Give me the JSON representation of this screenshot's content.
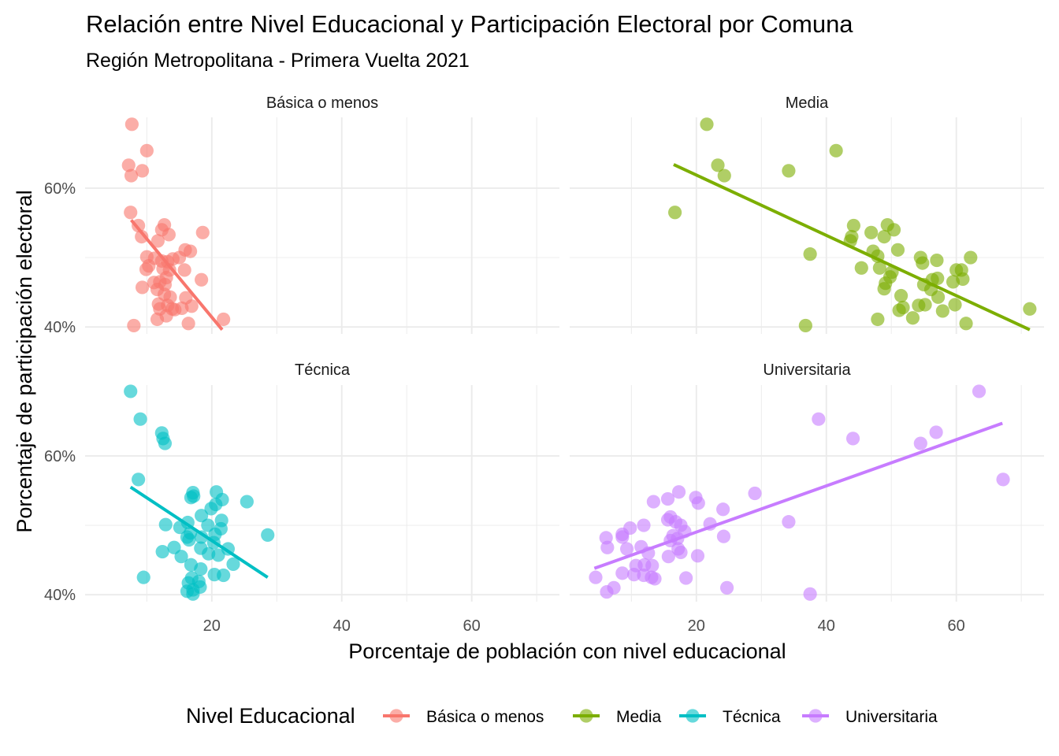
{
  "chart_data": {
    "type": "scatter",
    "title": "Relación entre Nivel Educacional y Participación Electoral por Comuna",
    "subtitle": "Región Metropolitana - Primera Vuelta 2021",
    "xlabel": "Porcentaje de población con nivel educacional",
    "ylabel": "Porcentaje de participación electoral",
    "xlim": [
      0.5,
      73.5
    ],
    "ylim": [
      39.0,
      70.2
    ],
    "x_ticks": [
      20,
      40,
      60
    ],
    "x_tick_labels": [
      "20",
      "40",
      "60"
    ],
    "y_ticks": [
      40,
      60
    ],
    "y_tick_labels": [
      "40%",
      "60%"
    ],
    "grid": true,
    "legend_title": "Nivel Educacional",
    "legend_position": "bottom",
    "colors": {
      "Básica o menos": "#F8766D",
      "Media": "#7CAE00",
      "Técnica": "#00BFC4",
      "Universitaria": "#C77CFF"
    },
    "panels": [
      {
        "name": "Básica o menos",
        "trend": {
          "x": [
            7.6,
            21.6
          ],
          "y": [
            55.4,
            39.6
          ]
        },
        "points": [
          [
            7.7,
            69.2
          ],
          [
            10.0,
            65.4
          ],
          [
            9.3,
            62.5
          ],
          [
            7.2,
            63.3
          ],
          [
            7.6,
            61.8
          ],
          [
            7.5,
            56.5
          ],
          [
            8.7,
            54.6
          ],
          [
            9.2,
            53.0
          ],
          [
            12.7,
            54.7
          ],
          [
            12.3,
            54.0
          ],
          [
            13.4,
            53.3
          ],
          [
            18.6,
            53.6
          ],
          [
            11.7,
            52.4
          ],
          [
            15.9,
            51.1
          ],
          [
            15.0,
            50.0
          ],
          [
            16.7,
            50.9
          ],
          [
            10.0,
            50.1
          ],
          [
            11.2,
            49.9
          ],
          [
            12.3,
            49.5
          ],
          [
            13.2,
            49.4
          ],
          [
            14.0,
            49.8
          ],
          [
            10.3,
            48.8
          ],
          [
            12.5,
            48.4
          ],
          [
            13.5,
            48.2
          ],
          [
            15.8,
            48.2
          ],
          [
            9.9,
            48.3
          ],
          [
            11.1,
            46.4
          ],
          [
            13.0,
            47.1
          ],
          [
            12.0,
            46.5
          ],
          [
            12.8,
            46.1
          ],
          [
            18.4,
            46.8
          ],
          [
            9.3,
            45.7
          ],
          [
            11.6,
            45.4
          ],
          [
            12.7,
            44.7
          ],
          [
            13.6,
            44.3
          ],
          [
            16.0,
            44.2
          ],
          [
            11.8,
            43.3
          ],
          [
            13.2,
            43.1
          ],
          [
            14.3,
            42.5
          ],
          [
            15.4,
            42.7
          ],
          [
            16.9,
            43.0
          ],
          [
            12.0,
            42.6
          ],
          [
            13.9,
            42.6
          ],
          [
            11.6,
            41.1
          ],
          [
            13.0,
            41.6
          ],
          [
            16.4,
            40.5
          ],
          [
            8.0,
            40.2
          ],
          [
            21.8,
            41.1
          ]
        ]
      },
      {
        "name": "Media",
        "trend": {
          "x": [
            16.5,
            71.3
          ],
          "y": [
            63.4,
            39.6
          ]
        },
        "points": [
          [
            21.6,
            69.2
          ],
          [
            41.5,
            65.4
          ],
          [
            34.2,
            62.5
          ],
          [
            23.3,
            63.3
          ],
          [
            24.3,
            61.8
          ],
          [
            16.7,
            56.5
          ],
          [
            44.2,
            54.6
          ],
          [
            43.9,
            53.0
          ],
          [
            49.4,
            54.7
          ],
          [
            46.9,
            53.6
          ],
          [
            50.4,
            54.0
          ],
          [
            43.7,
            52.4
          ],
          [
            48.9,
            53.0
          ],
          [
            51.0,
            51.1
          ],
          [
            47.2,
            50.9
          ],
          [
            47.9,
            50.2
          ],
          [
            37.5,
            50.5
          ],
          [
            54.5,
            50.0
          ],
          [
            57.0,
            49.6
          ],
          [
            62.2,
            50.0
          ],
          [
            45.4,
            48.5
          ],
          [
            48.2,
            48.5
          ],
          [
            50.1,
            47.9
          ],
          [
            54.8,
            49.2
          ],
          [
            60.0,
            48.2
          ],
          [
            49.8,
            47.2
          ],
          [
            57.1,
            47.0
          ],
          [
            61.0,
            46.9
          ],
          [
            49.1,
            46.3
          ],
          [
            55.0,
            46.1
          ],
          [
            56.3,
            46.8
          ],
          [
            59.5,
            46.5
          ],
          [
            60.8,
            48.2
          ],
          [
            48.9,
            45.5
          ],
          [
            56.1,
            45.4
          ],
          [
            51.5,
            44.5
          ],
          [
            57.2,
            44.3
          ],
          [
            55.2,
            43.2
          ],
          [
            54.2,
            43.1
          ],
          [
            59.8,
            43.2
          ],
          [
            51.8,
            42.8
          ],
          [
            51.2,
            42.4
          ],
          [
            57.9,
            42.3
          ],
          [
            53.3,
            41.3
          ],
          [
            47.9,
            41.1
          ],
          [
            61.5,
            40.5
          ],
          [
            36.8,
            40.2
          ],
          [
            71.3,
            42.6
          ]
        ]
      },
      {
        "name": "Técnica",
        "trend": {
          "x": [
            7.5,
            28.6
          ],
          "y": [
            55.5,
            42.5
          ]
        },
        "points": [
          [
            7.5,
            69.3
          ],
          [
            9.0,
            65.3
          ],
          [
            12.3,
            63.3
          ],
          [
            12.5,
            62.5
          ],
          [
            12.8,
            61.8
          ],
          [
            8.7,
            56.6
          ],
          [
            17.1,
            54.7
          ],
          [
            20.7,
            54.8
          ],
          [
            17.2,
            54.2
          ],
          [
            16.8,
            54.0
          ],
          [
            21.6,
            53.7
          ],
          [
            25.4,
            53.4
          ],
          [
            19.9,
            52.4
          ],
          [
            20.6,
            53.0
          ],
          [
            18.4,
            51.4
          ],
          [
            16.3,
            50.4
          ],
          [
            21.5,
            50.7
          ],
          [
            19.4,
            50.0
          ],
          [
            12.9,
            50.1
          ],
          [
            21.4,
            49.5
          ],
          [
            15.1,
            49.7
          ],
          [
            16.7,
            48.9
          ],
          [
            20.5,
            48.7
          ],
          [
            18.4,
            48.3
          ],
          [
            16.2,
            48.3
          ],
          [
            16.5,
            47.9
          ],
          [
            20.3,
            47.5
          ],
          [
            28.6,
            48.6
          ],
          [
            22.5,
            46.6
          ],
          [
            18.3,
            46.7
          ],
          [
            14.2,
            46.8
          ],
          [
            12.4,
            46.2
          ],
          [
            21.0,
            45.7
          ],
          [
            15.3,
            45.5
          ],
          [
            19.5,
            45.9
          ],
          [
            23.3,
            44.4
          ],
          [
            16.8,
            44.3
          ],
          [
            18.3,
            43.7
          ],
          [
            21.8,
            42.8
          ],
          [
            20.4,
            42.9
          ],
          [
            9.5,
            42.5
          ],
          [
            16.9,
            42.4
          ],
          [
            16.4,
            41.7
          ],
          [
            18.2,
            41.1
          ],
          [
            16.2,
            40.5
          ],
          [
            17.1,
            40.1
          ],
          [
            17.1,
            40.7
          ],
          [
            18.0,
            41.9
          ]
        ]
      },
      {
        "name": "Universitaria",
        "trend": {
          "x": [
            4.3,
            67.1
          ],
          "y": [
            43.8,
            64.7
          ]
        },
        "points": [
          [
            63.5,
            69.3
          ],
          [
            38.8,
            65.3
          ],
          [
            56.9,
            63.4
          ],
          [
            44.1,
            62.5
          ],
          [
            54.5,
            61.8
          ],
          [
            67.2,
            56.6
          ],
          [
            29.0,
            54.6
          ],
          [
            17.3,
            54.8
          ],
          [
            19.9,
            54.0
          ],
          [
            13.4,
            53.4
          ],
          [
            15.6,
            53.8
          ],
          [
            20.3,
            53.2
          ],
          [
            16.0,
            51.2
          ],
          [
            15.6,
            50.8
          ],
          [
            16.8,
            50.5
          ],
          [
            24.1,
            52.3
          ],
          [
            34.2,
            50.5
          ],
          [
            17.6,
            50.0
          ],
          [
            22.1,
            50.2
          ],
          [
            11.9,
            50.0
          ],
          [
            9.8,
            49.6
          ],
          [
            8.6,
            48.7
          ],
          [
            6.1,
            48.2
          ],
          [
            16.4,
            48.5
          ],
          [
            18.2,
            49.1
          ],
          [
            8.6,
            48.3
          ],
          [
            17.1,
            48.1
          ],
          [
            16.0,
            47.8
          ],
          [
            24.2,
            48.4
          ],
          [
            11.5,
            46.9
          ],
          [
            6.3,
            46.8
          ],
          [
            9.3,
            46.6
          ],
          [
            12.6,
            46.0
          ],
          [
            17.6,
            46.1
          ],
          [
            17.2,
            46.6
          ],
          [
            20.2,
            45.6
          ],
          [
            15.7,
            45.5
          ],
          [
            13.2,
            44.2
          ],
          [
            10.7,
            44.2
          ],
          [
            12.0,
            44.3
          ],
          [
            8.6,
            43.1
          ],
          [
            11.9,
            42.8
          ],
          [
            10.4,
            42.9
          ],
          [
            13.1,
            42.5
          ],
          [
            13.6,
            42.3
          ],
          [
            18.4,
            42.4
          ],
          [
            4.5,
            42.5
          ],
          [
            7.3,
            41.0
          ],
          [
            6.2,
            40.4
          ],
          [
            24.7,
            41.0
          ],
          [
            37.5,
            40.1
          ]
        ]
      }
    ]
  }
}
